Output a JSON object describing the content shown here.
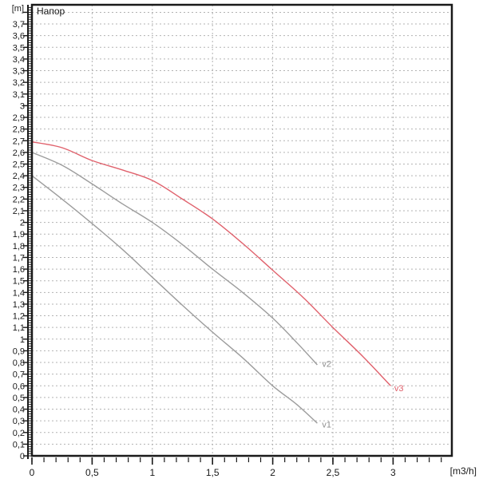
{
  "chart_data": {
    "type": "line",
    "title": "Напор",
    "ylabel": "[m]",
    "xlabel": "[m3/h]",
    "xlim": [
      0,
      3.49
    ],
    "ylim": [
      0,
      3.86
    ],
    "grid": true,
    "legend_position": "inline-curve-end-labels",
    "x_major_ticks": [
      0,
      0.5,
      1,
      1.5,
      2,
      2.5,
      3
    ],
    "x_tick_labels": [
      "0",
      "0,5",
      "1",
      "1,5",
      "2",
      "2,5",
      "3"
    ],
    "x_minor_step": 0.1,
    "y_major_step": 0.1,
    "y_minor_step": 0.02,
    "y_tick_labels": [
      "0",
      "0,1",
      "0,2",
      "0,3",
      "0,4",
      "0,5",
      "0,6",
      "0,7",
      "0,8",
      "0,9",
      "1",
      "1,1",
      "1,2",
      "1,3",
      "1,4",
      "1,5",
      "1,6",
      "1,7",
      "1,8",
      "1,9",
      "2",
      "2,1",
      "2,2",
      "2,3",
      "2,4",
      "2,5",
      "2,6",
      "2,7",
      "2,8",
      "2,9",
      "3",
      "3,1",
      "3,2",
      "3,3",
      "3,4",
      "3,5",
      "3,6",
      "3,7"
    ],
    "series": [
      {
        "name": "v1",
        "color": "#9c9c9c",
        "label_at": [
          2.41,
          0.27
        ],
        "points": [
          [
            0,
            2.4
          ],
          [
            0.25,
            2.2
          ],
          [
            0.5,
            1.99
          ],
          [
            0.75,
            1.77
          ],
          [
            1.0,
            1.53
          ],
          [
            1.25,
            1.29
          ],
          [
            1.5,
            1.06
          ],
          [
            1.75,
            0.84
          ],
          [
            2.0,
            0.6
          ],
          [
            2.2,
            0.44
          ],
          [
            2.37,
            0.28
          ]
        ]
      },
      {
        "name": "v2",
        "color": "#9c9c9c",
        "label_at": [
          2.41,
          0.79
        ],
        "points": [
          [
            0,
            2.6
          ],
          [
            0.25,
            2.49
          ],
          [
            0.5,
            2.33
          ],
          [
            0.75,
            2.16
          ],
          [
            1.0,
            2.0
          ],
          [
            1.25,
            1.81
          ],
          [
            1.5,
            1.6
          ],
          [
            1.75,
            1.4
          ],
          [
            2.0,
            1.18
          ],
          [
            2.2,
            0.97
          ],
          [
            2.37,
            0.78
          ]
        ]
      },
      {
        "name": "v3",
        "color": "#e0616c",
        "label_at": [
          3.01,
          0.58
        ],
        "points": [
          [
            0,
            2.69
          ],
          [
            0.25,
            2.64
          ],
          [
            0.5,
            2.53
          ],
          [
            0.75,
            2.45
          ],
          [
            1.0,
            2.36
          ],
          [
            1.25,
            2.2
          ],
          [
            1.5,
            2.03
          ],
          [
            1.75,
            1.82
          ],
          [
            2.0,
            1.59
          ],
          [
            2.25,
            1.36
          ],
          [
            2.5,
            1.1
          ],
          [
            2.75,
            0.85
          ],
          [
            2.98,
            0.6
          ]
        ]
      }
    ]
  },
  "colors": {
    "background": "#ffffff",
    "grid": "#b3b3b3",
    "axis": "#1a1a1a",
    "curve_gray": "#9c9c9c",
    "curve_red": "#e0616c"
  }
}
